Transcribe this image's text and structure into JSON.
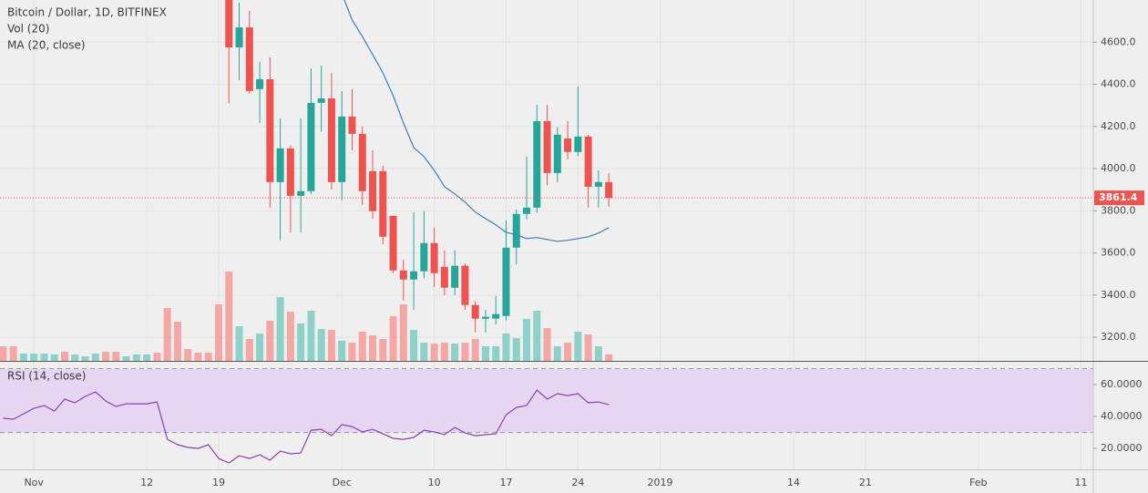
{
  "chart_data": [
    {
      "type": "candlestick",
      "title": "Bitcoin / Dollar, 1D, BITFINEX",
      "volume_label": "Vol (20)",
      "x": [
        20,
        21,
        22,
        23,
        24,
        25,
        26,
        27,
        28,
        29,
        30,
        31,
        32,
        33,
        34,
        35,
        36,
        37,
        38,
        39,
        40,
        41,
        42,
        43,
        44,
        45,
        46,
        47,
        48,
        49,
        50,
        51,
        52,
        53,
        54,
        55,
        56,
        57
      ],
      "open": [
        4830,
        4575,
        4670,
        4377,
        4424,
        3936,
        4096,
        3871,
        3893,
        4312,
        4333,
        3936,
        4247,
        4165,
        3988,
        3988,
        3776,
        3517,
        3474,
        3513,
        3647,
        3534,
        3435,
        3539,
        3353,
        3288,
        3288,
        3301,
        3625,
        3785,
        3815,
        4225,
        3979,
        4143,
        4079,
        4152,
        3914,
        3936
      ],
      "high": [
        4880,
        4787,
        4748,
        4506,
        4528,
        4238,
        4110,
        4238,
        4476,
        4489,
        4454,
        4368,
        4377,
        4200,
        4087,
        4014,
        3776,
        3568,
        3793,
        3798,
        3720,
        3612,
        3612,
        3550,
        3370,
        3331,
        3396,
        3755,
        3806,
        4057,
        4303,
        4303,
        4196,
        4225,
        4390,
        4161,
        3992,
        3979
      ],
      "low": [
        4310,
        4420,
        4355,
        4217,
        3815,
        3660,
        3698,
        3698,
        3880,
        4174,
        3900,
        3850,
        4087,
        3828,
        3763,
        3642,
        3504,
        3375,
        3331,
        3480,
        3439,
        3400,
        3400,
        3330,
        3223,
        3223,
        3260,
        3280,
        3547,
        3760,
        3790,
        3920,
        3935,
        4044,
        4060,
        3815,
        3815,
        3820
      ],
      "close": [
        4575,
        4670,
        4368,
        4424,
        3936,
        4096,
        3871,
        3893,
        4312,
        4333,
        3936,
        4247,
        4165,
        3893,
        3798,
        3677,
        3517,
        3474,
        3513,
        3647,
        3504,
        3435,
        3539,
        3353,
        3288,
        3297,
        3310,
        3625,
        3785,
        3815,
        4225,
        3979,
        4161,
        4079,
        4152,
        3914,
        3936,
        3861.4
      ],
      "up_color": "#26a69a",
      "down_color": "#ef5350",
      "series": [
        {
          "name": "MA (20, close)",
          "color": "#3d7fb8",
          "x": [
            31,
            32,
            33,
            34,
            35,
            36,
            37,
            38,
            39,
            40,
            41,
            42,
            43,
            44,
            45,
            46,
            47,
            48,
            49,
            50,
            51,
            52,
            53,
            54,
            55,
            56,
            57
          ],
          "values": [
            4830,
            4705,
            4627,
            4541,
            4454,
            4346,
            4217,
            4100,
            4057,
            3992,
            3914,
            3880,
            3841,
            3794,
            3763,
            3733,
            3698,
            3686,
            3668,
            3673,
            3664,
            3655,
            3660,
            3668,
            3677,
            3694,
            3720
          ]
        }
      ],
      "volume": {
        "x": [
          -2,
          -1,
          0,
          1,
          2,
          3,
          4,
          5,
          6,
          7,
          8,
          9,
          10,
          11,
          12,
          13,
          14,
          15,
          16,
          17,
          18,
          19,
          20,
          21,
          22,
          23,
          24,
          25,
          26,
          27,
          28,
          29,
          30,
          31,
          32,
          33,
          34,
          35,
          36,
          37,
          38,
          39,
          40,
          41,
          42,
          43,
          44,
          45,
          46,
          47,
          48,
          49,
          50,
          51,
          52,
          53,
          54,
          55,
          56,
          57
        ],
        "values": [
          16,
          16,
          8,
          8,
          8,
          7,
          10,
          7,
          5,
          8,
          10,
          10,
          5,
          7,
          7,
          9,
          58,
          43,
          13,
          9,
          9,
          62,
          98,
          38,
          24,
          30,
          44,
          70,
          54,
          41,
          55,
          35,
          34,
          22,
          20,
          32,
          28,
          24,
          49,
          62,
          34,
          20,
          19,
          20,
          19,
          20,
          24,
          16,
          16,
          30,
          25,
          46,
          55,
          36,
          16,
          20,
          32,
          29,
          16,
          7
        ],
        "colors": [
          "#f4a7a5",
          "#f4a7a5",
          "#8ed0ca",
          "#8ed0ca",
          "#8ed0ca",
          "#8ed0ca",
          "#f4a7a5",
          "#8ed0ca",
          "#8ed0ca",
          "#8ed0ca",
          "#f4a7a5",
          "#f4a7a5",
          "#8ed0ca",
          "#8ed0ca",
          "#8ed0ca",
          "#f4a7a5",
          "#f4a7a5",
          "#f4a7a5",
          "#f4a7a5",
          "#f4a7a5",
          "#f4a7a5",
          "#f4a7a5",
          "#f4a7a5",
          "#8ed0ca",
          "#f4a7a5",
          "#8ed0ca",
          "#f4a7a5",
          "#8ed0ca",
          "#f4a7a5",
          "#8ed0ca",
          "#8ed0ca",
          "#8ed0ca",
          "#f4a7a5",
          "#8ed0ca",
          "#f4a7a5",
          "#f4a7a5",
          "#f4a7a5",
          "#f4a7a5",
          "#f4a7a5",
          "#f4a7a5",
          "#8ed0ca",
          "#8ed0ca",
          "#f4a7a5",
          "#f4a7a5",
          "#8ed0ca",
          "#f4a7a5",
          "#f4a7a5",
          "#8ed0ca",
          "#8ed0ca",
          "#8ed0ca",
          "#8ed0ca",
          "#8ed0ca",
          "#8ed0ca",
          "#f4a7a5",
          "#8ed0ca",
          "#f4a7a5",
          "#8ed0ca",
          "#f4a7a5",
          "#8ed0ca",
          "#f4a7a5"
        ]
      },
      "last_price": 3861.4,
      "xlim": [
        -2.3,
        104.2
      ],
      "xticks": [
        {
          "value": 1,
          "label": "Nov"
        },
        {
          "value": 12,
          "label": "12"
        },
        {
          "value": 19,
          "label": "19"
        },
        {
          "value": 31,
          "label": "Dec"
        },
        {
          "value": 40,
          "label": "10"
        },
        {
          "value": 47,
          "label": "17"
        },
        {
          "value": 54,
          "label": "24"
        },
        {
          "value": 62,
          "label": "2019"
        },
        {
          "value": 75,
          "label": "14"
        },
        {
          "value": 82,
          "label": "21"
        },
        {
          "value": 93,
          "label": "Feb"
        },
        {
          "value": 103,
          "label": "11"
        }
      ],
      "ylim": [
        3088,
        4800
      ],
      "yticks": [
        {
          "value": 3200,
          "label": "3200.0"
        },
        {
          "value": 3400,
          "label": "3400.0"
        },
        {
          "value": 3600,
          "label": "3600.0"
        },
        {
          "value": 3800,
          "label": "3800.0"
        },
        {
          "value": 4000,
          "label": "4000.0"
        },
        {
          "value": 4200,
          "label": "4200.0"
        },
        {
          "value": 4400,
          "label": "4400.0"
        },
        {
          "value": 4600,
          "label": "4600.0"
        }
      ],
      "grid": true
    },
    {
      "type": "line",
      "title": "RSI (14, close)",
      "x": [
        -2,
        -1,
        0,
        1,
        2,
        3,
        4,
        5,
        6,
        7,
        8,
        9,
        10,
        11,
        12,
        13,
        14,
        15,
        16,
        17,
        18,
        19,
        20,
        21,
        22,
        23,
        24,
        25,
        26,
        27,
        28,
        29,
        30,
        31,
        32,
        33,
        34,
        35,
        36,
        37,
        38,
        39,
        40,
        41,
        42,
        43,
        44,
        45,
        46,
        47,
        48,
        49,
        50,
        51,
        52,
        53,
        54,
        55,
        56,
        57
      ],
      "values": [
        38.9,
        38.3,
        41.7,
        45.1,
        46.9,
        43.4,
        50.9,
        48.6,
        52.6,
        55.4,
        49.7,
        46.3,
        48.0,
        48.0,
        48.0,
        49.1,
        25.7,
        22.3,
        20.6,
        20.0,
        22.3,
        13.7,
        10.9,
        15.4,
        13.7,
        16.0,
        12.6,
        18.3,
        16.6,
        17.1,
        31.4,
        32.0,
        28.0,
        34.9,
        33.7,
        30.3,
        32.0,
        29.1,
        26.3,
        25.7,
        26.9,
        31.4,
        30.3,
        28.6,
        33.1,
        29.7,
        28.0,
        28.6,
        29.1,
        41.1,
        45.7,
        46.9,
        56.6,
        50.9,
        54.3,
        53.1,
        54.3,
        48.6,
        49.1,
        47.4
      ],
      "color": "#8e3fb0",
      "bands": [
        30,
        70
      ],
      "band_color": "#e7d6f2",
      "ylim": [
        6.9,
        72.6
      ],
      "yticks": [
        {
          "value": 20,
          "label": "20.0000"
        },
        {
          "value": 40,
          "label": "40.0000"
        },
        {
          "value": 60,
          "label": "60.0000"
        }
      ]
    }
  ]
}
